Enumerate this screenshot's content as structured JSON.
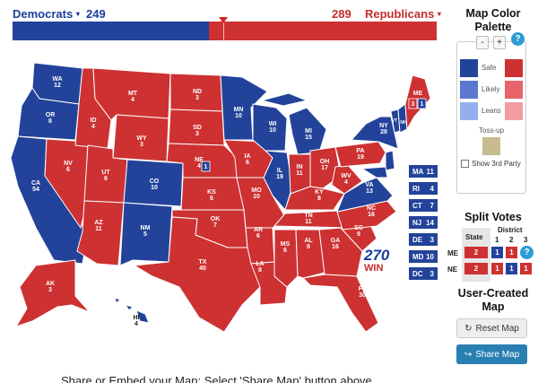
{
  "header": {
    "dem_label": "Democrats",
    "dem_votes": "249",
    "rep_votes": "289",
    "rep_label": "Republicans",
    "caret": "▾",
    "dem_fraction": 0.4628
  },
  "colors": {
    "safe_dem": "#23439a",
    "likely_dem": "#5b78cf",
    "leans_dem": "#94afee",
    "safe_rep": "#cd3132",
    "likely_rep": "#e8636a",
    "leans_rep": "#ef9da1",
    "tossup": "#c7bb8f"
  },
  "states": {
    "WA": "WA\n12",
    "OR": "OR\n8",
    "CA": "CA\n54",
    "NV": "NV\n6",
    "ID": "ID\n4",
    "MT": "MT\n4",
    "WY": "WY\n3",
    "UT": "UT\n6",
    "AZ": "AZ\n11",
    "CO": "CO\n10",
    "NM": "NM\n5",
    "ND": "ND\n3",
    "SD": "SD\n3",
    "NE": "NE\n4",
    "KS": "KS\n6",
    "OK": "OK\n7",
    "TX": "TX\n40",
    "MN": "MN\n10",
    "IA": "IA\n6",
    "MO": "MO\n10",
    "AR": "AR\n6",
    "LA": "LA\n8",
    "WI": "WI\n10",
    "IL": "IL\n19",
    "MI": "MI\n15",
    "IN": "IN\n11",
    "OH": "OH\n17",
    "KY": "KY\n8",
    "TN": "TN\n11",
    "MS": "MS\n6",
    "AL": "AL\n9",
    "GA": "GA\n16",
    "FL": "FL\n30",
    "SC": "SC\n9",
    "NC": "NC\n16",
    "VA": "VA\n13",
    "WV": "WV\n4",
    "PA": "PA\n19",
    "NY": "NY\n28",
    "ME": "ME",
    "AK": "AK\n3",
    "HI": "HI\n4",
    "ME_districts": [
      "3",
      "1"
    ],
    "NE_district": "1",
    "VT": "VT",
    "NH": "NH"
  },
  "small_states": [
    {
      "abbr": "MA",
      "ev": "11"
    },
    {
      "abbr": "RI",
      "ev": "4"
    },
    {
      "abbr": "CT",
      "ev": "7"
    },
    {
      "abbr": "NJ",
      "ev": "14"
    },
    {
      "abbr": "DE",
      "ev": "3"
    },
    {
      "abbr": "MD",
      "ev": "10"
    },
    {
      "abbr": "DC",
      "ev": "3"
    }
  ],
  "logo": {
    "number": "270",
    "win_text": "WIN"
  },
  "panel": {
    "palette_title": "Map Color Palette",
    "minus": "-",
    "plus": "+",
    "help": "?",
    "safe": "Safe",
    "likely": "Likely",
    "leans": "Leans",
    "tossup": "Toss-up",
    "show_third": "Show 3rd Party",
    "split_title": "Split Votes",
    "state_col": "State",
    "district_col": "District",
    "d1": "1",
    "d2": "2",
    "d3": "3",
    "me_label": "ME",
    "ne_label": "NE",
    "me_state": "2",
    "me_d1": "1",
    "me_d2": "1",
    "ne_state": "2",
    "ne_d1": "1",
    "ne_d2": "1",
    "ne_d3": "1",
    "user_title": "User-Created Map",
    "reset_label": "Reset Map",
    "share_label": "Share Map"
  },
  "footer": {
    "text": "Share or Embed your Map: Select 'Share Map' button above"
  }
}
